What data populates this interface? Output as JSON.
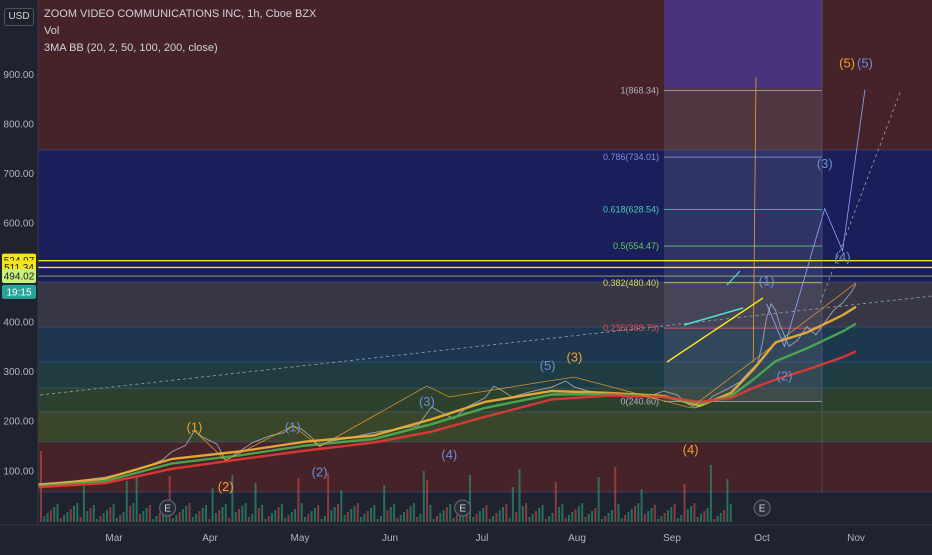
{
  "header": {
    "title": "ZOOM VIDEO COMMUNICATIONS INC, 1h, Cboe BZX",
    "vol_label": "Vol",
    "ma_label": "3MA BB (20, 2, 50, 100, 200, close)",
    "currency_button": "USD"
  },
  "chart_data": {
    "type": "line",
    "title": "ZOOM VIDEO COMMUNICATIONS INC, 1h, Cboe BZX",
    "xlabel": "",
    "ylabel": "",
    "ylim": [
      40,
      1010
    ],
    "y_ticks": [
      "100.00",
      "200.00",
      "300.00",
      "400.00",
      "500.00",
      "600.00",
      "700.00",
      "800.00",
      "900.00"
    ],
    "x_ticks": [
      "Mar",
      "Apr",
      "May",
      "Jun",
      "Jul",
      "Aug",
      "Sep",
      "Oct",
      "Nov"
    ],
    "grid": false,
    "series": [
      {
        "name": "price",
        "color": "#9aa0ad",
        "values": [
          [
            0,
            75
          ],
          [
            8,
            80
          ],
          [
            15,
            88
          ],
          [
            20,
            98
          ],
          [
            25,
            112
          ],
          [
            28,
            124
          ],
          [
            30,
            140
          ],
          [
            33,
            152
          ],
          [
            35,
            182
          ],
          [
            37,
            168
          ],
          [
            40,
            155
          ],
          [
            42,
            122
          ],
          [
            45,
            140
          ],
          [
            48,
            158
          ],
          [
            52,
            172
          ],
          [
            55,
            178
          ],
          [
            57,
            192
          ],
          [
            59,
            185
          ],
          [
            61,
            170
          ],
          [
            63,
            150
          ],
          [
            65,
            160
          ],
          [
            70,
            168
          ],
          [
            75,
            178
          ],
          [
            80,
            185
          ],
          [
            85,
            192
          ],
          [
            88,
            230
          ],
          [
            90,
            220
          ],
          [
            93,
            206
          ],
          [
            96,
            230
          ],
          [
            100,
            248
          ],
          [
            102,
            272
          ],
          [
            104,
            262
          ],
          [
            106,
            250
          ],
          [
            110,
            260
          ],
          [
            115,
            270
          ],
          [
            118,
            282
          ],
          [
            120,
            270
          ],
          [
            123,
            262
          ],
          [
            127,
            258
          ],
          [
            132,
            250
          ],
          [
            137,
            252
          ],
          [
            140,
            262
          ],
          [
            143,
            254
          ],
          [
            145,
            238
          ],
          [
            147,
            228
          ],
          [
            149,
            235
          ],
          [
            151,
            252
          ],
          [
            154,
            265
          ],
          [
            157,
            280
          ],
          [
            159,
            300
          ],
          [
            161,
            318
          ],
          [
            162,
            355
          ],
          [
            163,
            410
          ],
          [
            164,
            438
          ],
          [
            165,
            425
          ],
          [
            166,
            395
          ],
          [
            168,
            352
          ],
          [
            170,
            365
          ],
          [
            172,
            392
          ],
          [
            174,
            375
          ],
          [
            176,
            400
          ],
          [
            178,
            425
          ],
          [
            180,
            440
          ],
          [
            182,
            462
          ],
          [
            183,
            478
          ]
        ]
      },
      {
        "name": "MA 20",
        "color": "#f0b23a",
        "values": [
          [
            0,
            72
          ],
          [
            15,
            85
          ],
          [
            30,
            125
          ],
          [
            45,
            140
          ],
          [
            60,
            160
          ],
          [
            75,
            172
          ],
          [
            88,
            205
          ],
          [
            100,
            240
          ],
          [
            115,
            262
          ],
          [
            128,
            258
          ],
          [
            140,
            252
          ],
          [
            148,
            232
          ],
          [
            155,
            258
          ],
          [
            160,
            305
          ],
          [
            165,
            360
          ],
          [
            172,
            380
          ],
          [
            180,
            415
          ],
          [
            183,
            432
          ]
        ]
      },
      {
        "name": "MA 50",
        "color": "#4caf50",
        "values": [
          [
            0,
            70
          ],
          [
            15,
            80
          ],
          [
            30,
            116
          ],
          [
            45,
            132
          ],
          [
            60,
            152
          ],
          [
            75,
            165
          ],
          [
            88,
            195
          ],
          [
            100,
            228
          ],
          [
            115,
            255
          ],
          [
            128,
            256
          ],
          [
            140,
            250
          ],
          [
            148,
            236
          ],
          [
            155,
            252
          ],
          [
            160,
            285
          ],
          [
            165,
            322
          ],
          [
            172,
            348
          ],
          [
            180,
            382
          ],
          [
            183,
            398
          ]
        ]
      },
      {
        "name": "MA 100",
        "color": "#e53935",
        "values": [
          [
            0,
            68
          ],
          [
            15,
            76
          ],
          [
            30,
            105
          ],
          [
            45,
            124
          ],
          [
            60,
            142
          ],
          [
            75,
            158
          ],
          [
            88,
            180
          ],
          [
            100,
            210
          ],
          [
            115,
            245
          ],
          [
            128,
            253
          ],
          [
            140,
            250
          ],
          [
            148,
            240
          ],
          [
            155,
            248
          ],
          [
            160,
            268
          ],
          [
            165,
            285
          ],
          [
            172,
            305
          ],
          [
            180,
            330
          ],
          [
            183,
            342
          ]
        ]
      }
    ],
    "fibonacci": [
      {
        "label": "1(868.34)",
        "value": 868.34
      },
      {
        "label": "0.786(734.01)",
        "value": 734.01
      },
      {
        "label": "0.618(628.54)",
        "value": 628.54
      },
      {
        "label": "0.5(554.47)",
        "value": 554.47
      },
      {
        "label": "0.382(480.40)",
        "value": 480.4
      },
      {
        "label": "0.236(388.75)",
        "value": 388.75
      },
      {
        "label": "0(240.60)",
        "value": 240.6
      }
    ],
    "price_tags": [
      {
        "label": "524.97",
        "value": 524.97,
        "bg": "#f5e61a",
        "fg": "#131722"
      },
      {
        "label": "511.34",
        "value": 511.34,
        "bg": "#f5e61a",
        "fg": "#131722"
      },
      {
        "label": "494.02",
        "value": 494.02,
        "bg": "#c8f07a",
        "fg": "#131722"
      },
      {
        "label": "19:15",
        "value": 462,
        "bg": "#26a69a",
        "fg": "#ffffff"
      }
    ],
    "wave_labels": [
      {
        "text": "(1)",
        "color": "#f0a030",
        "x": 35,
        "y": 180
      },
      {
        "text": "(2)",
        "color": "#f0a030",
        "x": 42,
        "y": 60
      },
      {
        "text": "(1)",
        "color": "#6c8fd8",
        "x": 57,
        "y": 180
      },
      {
        "text": "(2)",
        "color": "#6c8fd8",
        "x": 63,
        "y": 90
      },
      {
        "text": "(3)",
        "color": "#6c8fd8",
        "x": 87,
        "y": 232
      },
      {
        "text": "(4)",
        "color": "#6c8fd8",
        "x": 92,
        "y": 125
      },
      {
        "text": "(5)",
        "color": "#6c8fd8",
        "x": 114,
        "y": 304
      },
      {
        "text": "(3)",
        "color": "#f0a030",
        "x": 120,
        "y": 322
      },
      {
        "text": "(4)",
        "color": "#f0a030",
        "x": 146,
        "y": 135
      },
      {
        "text": "(1)",
        "color": "#6c8fd8",
        "x": 163,
        "y": 475
      },
      {
        "text": "(2)",
        "color": "#6c8fd8",
        "x": 167,
        "y": 283
      },
      {
        "text": "(3)",
        "color": "#6c8fd8",
        "x": 176,
        "y": 712
      },
      {
        "text": "(4)",
        "color": "#6c8fd8",
        "x": 180,
        "y": 523
      },
      {
        "text": "(5)",
        "color": "#f0a030",
        "x": 181,
        "y": 915
      },
      {
        "text": "(5)",
        "color": "#6c8fd8",
        "x": 185,
        "y": 915
      }
    ],
    "events": [
      {
        "label": "E",
        "x": 29
      },
      {
        "label": "E",
        "x": 95
      },
      {
        "label": "E",
        "x": 162
      }
    ]
  }
}
